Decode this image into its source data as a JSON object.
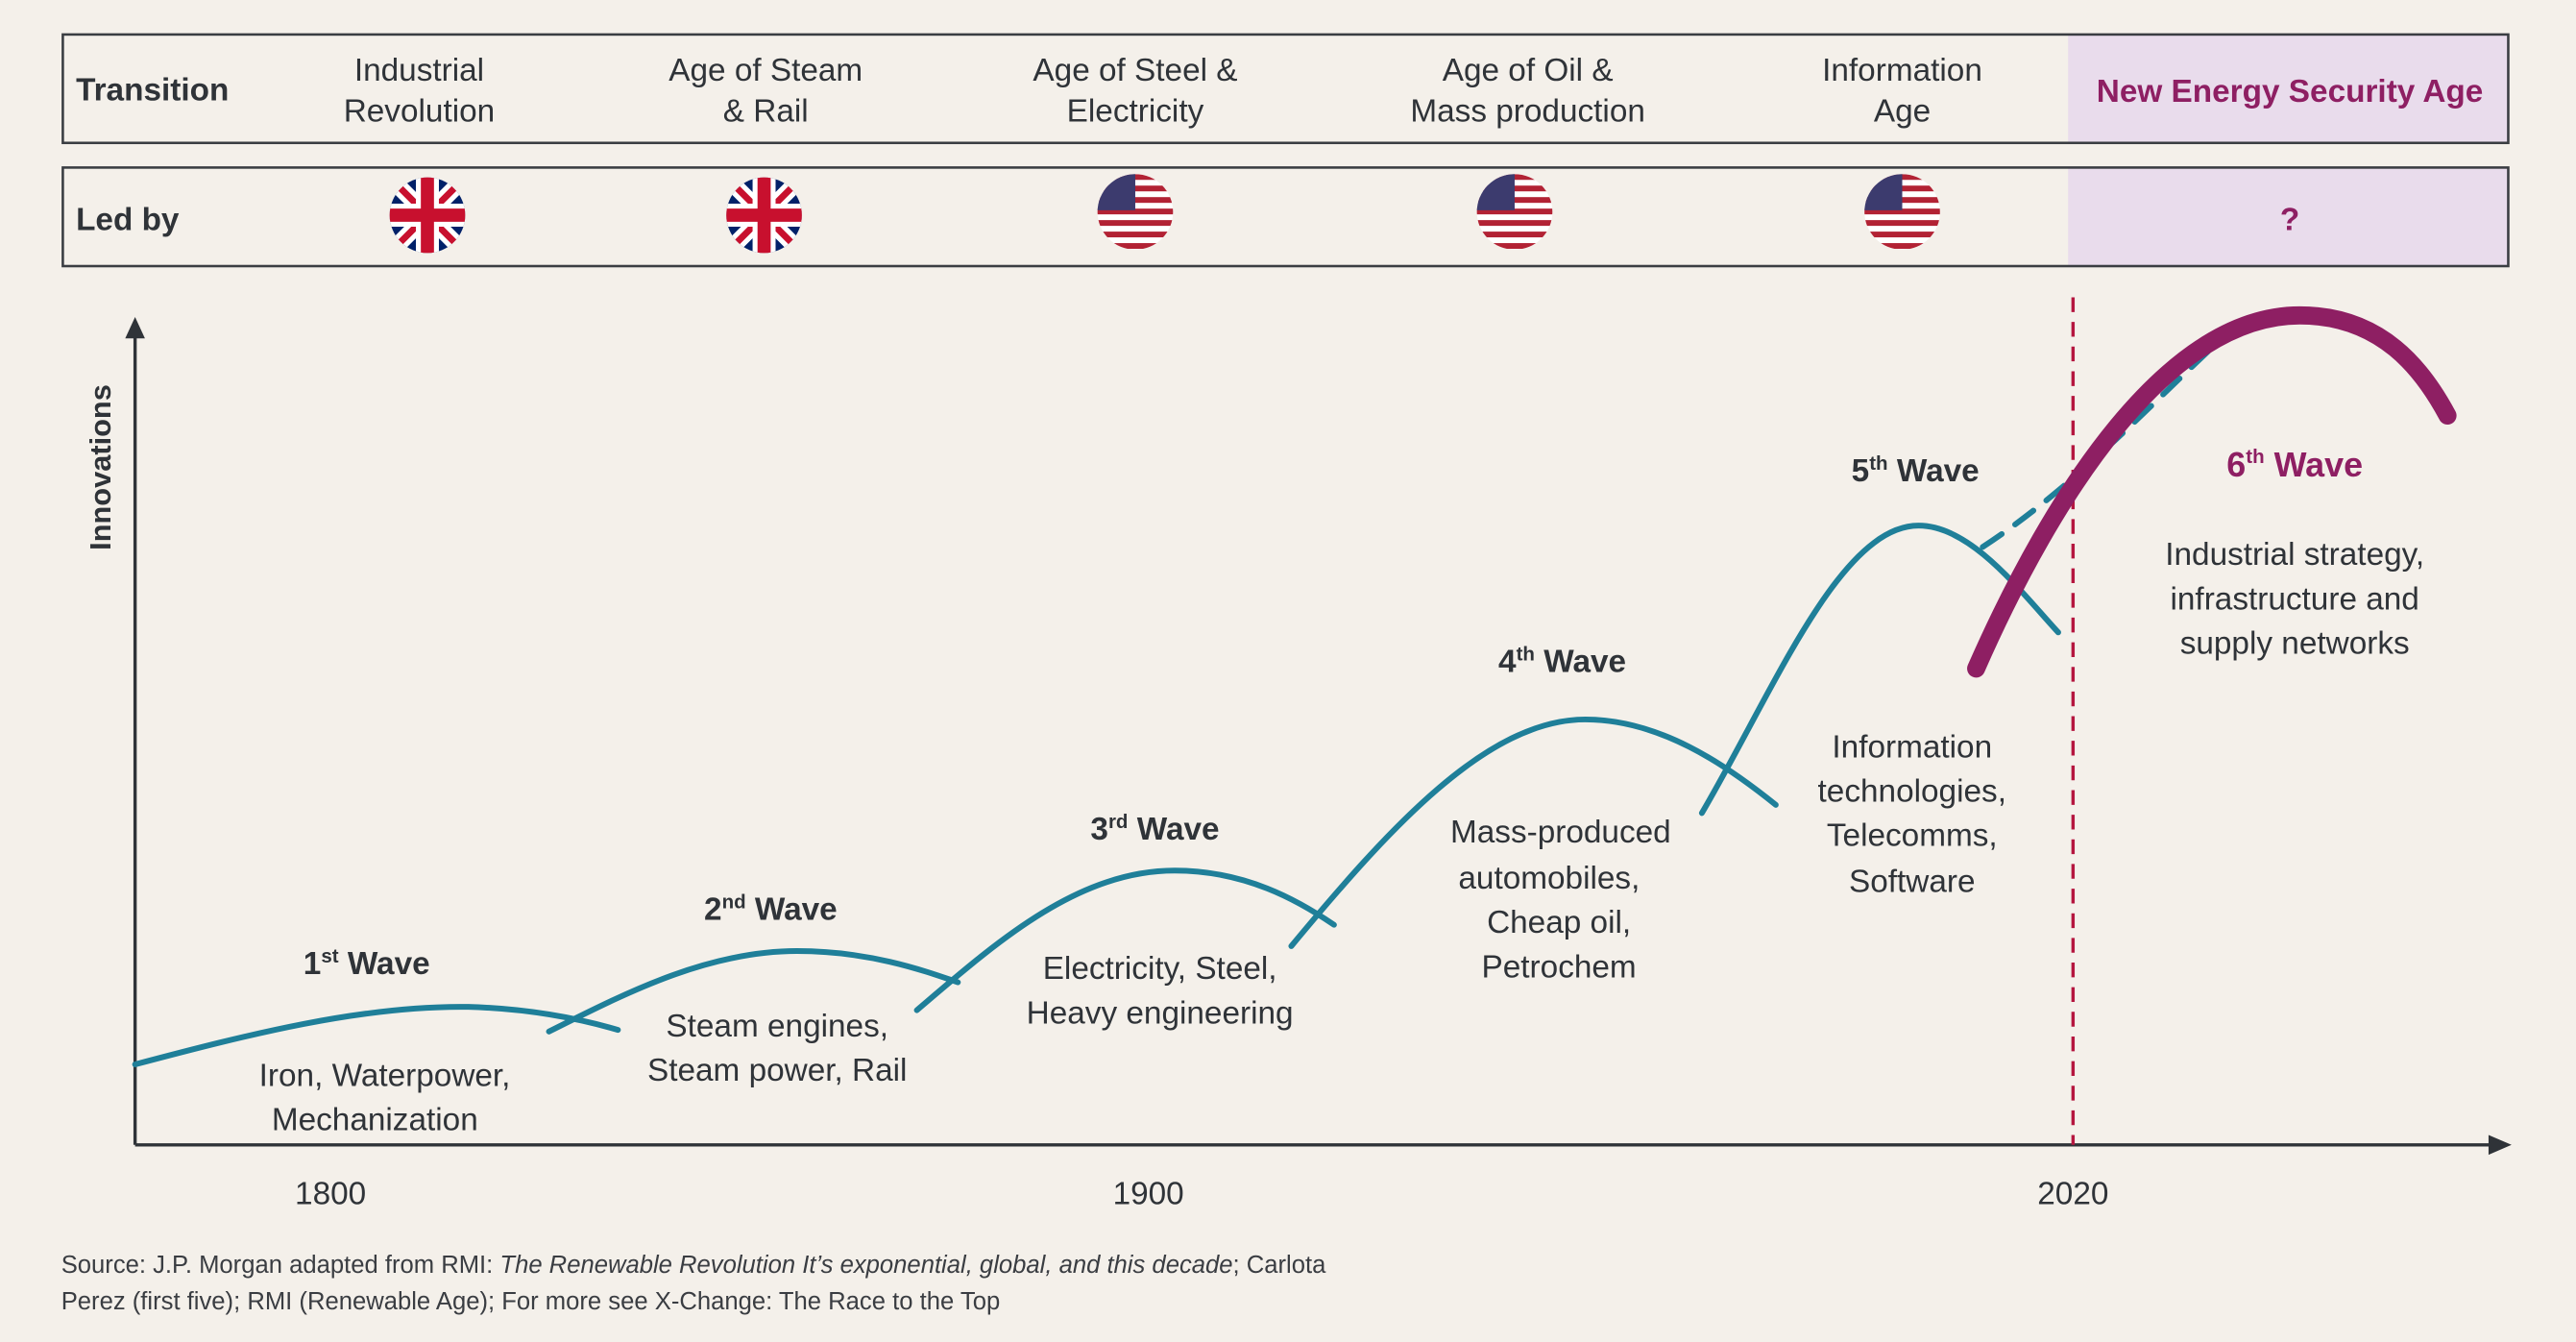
{
  "colors": {
    "background": "#f4f0ea",
    "wave": "#1f7f99",
    "sixth_wave": "#8e1f63",
    "highlight": "#e9dcec",
    "divider": "#b5163f",
    "text": "#2f3338"
  },
  "header": {
    "transition_label": "Transition",
    "led_by_label": "Led by",
    "transitions": [
      {
        "line1": "Industrial",
        "line2": "Revolution",
        "flag": "uk-flag-icon"
      },
      {
        "line1": "Age of Steam",
        "line2": "& Rail",
        "flag": "uk-flag-icon"
      },
      {
        "line1": "Age of Steel &",
        "line2": "Electricity",
        "flag": "us-flag-icon"
      },
      {
        "line1": "Age of Oil &",
        "line2": "Mass production",
        "flag": "us-flag-icon"
      },
      {
        "line1": "Information",
        "line2": "Age",
        "flag": "us-flag-icon"
      }
    ],
    "new_age": "New Energy Security Age",
    "new_age_leader": "?"
  },
  "chart": {
    "y_axis_label": "Innovations",
    "x_ticks": [
      "1800",
      "1900",
      "2020"
    ],
    "waves": [
      {
        "num": "1",
        "suffix": "st",
        "word": "Wave",
        "desc": [
          "Iron, Waterpower,",
          "Mechanization"
        ]
      },
      {
        "num": "2",
        "suffix": "nd",
        "word": "Wave",
        "desc": [
          "Steam engines,",
          "Steam power, Rail"
        ]
      },
      {
        "num": "3",
        "suffix": "rd",
        "word": "Wave",
        "desc": [
          "Electricity, Steel,",
          "Heavy engineering"
        ]
      },
      {
        "num": "4",
        "suffix": "th",
        "word": "Wave",
        "desc": [
          "Mass-produced",
          "automobiles,",
          "Cheap oil,",
          "Petrochem"
        ]
      },
      {
        "num": "5",
        "suffix": "th",
        "word": "Wave",
        "desc": [
          "Information",
          "technologies,",
          "Telecomms,",
          "Software"
        ]
      },
      {
        "num": "6",
        "suffix": "th",
        "word": "Wave",
        "desc": [
          "Industrial strategy,",
          "infrastructure and",
          "supply networks"
        ]
      }
    ]
  },
  "source": {
    "prefix": "Source: J.P. Morgan adapted from RMI: ",
    "italic": "The Renewable Revolution It’s exponential, global, and this decade",
    "suffix": "; Carlota",
    "line2": "Perez (first five); RMI (Renewable Age); For more see X-Change: The Race to the Top"
  }
}
